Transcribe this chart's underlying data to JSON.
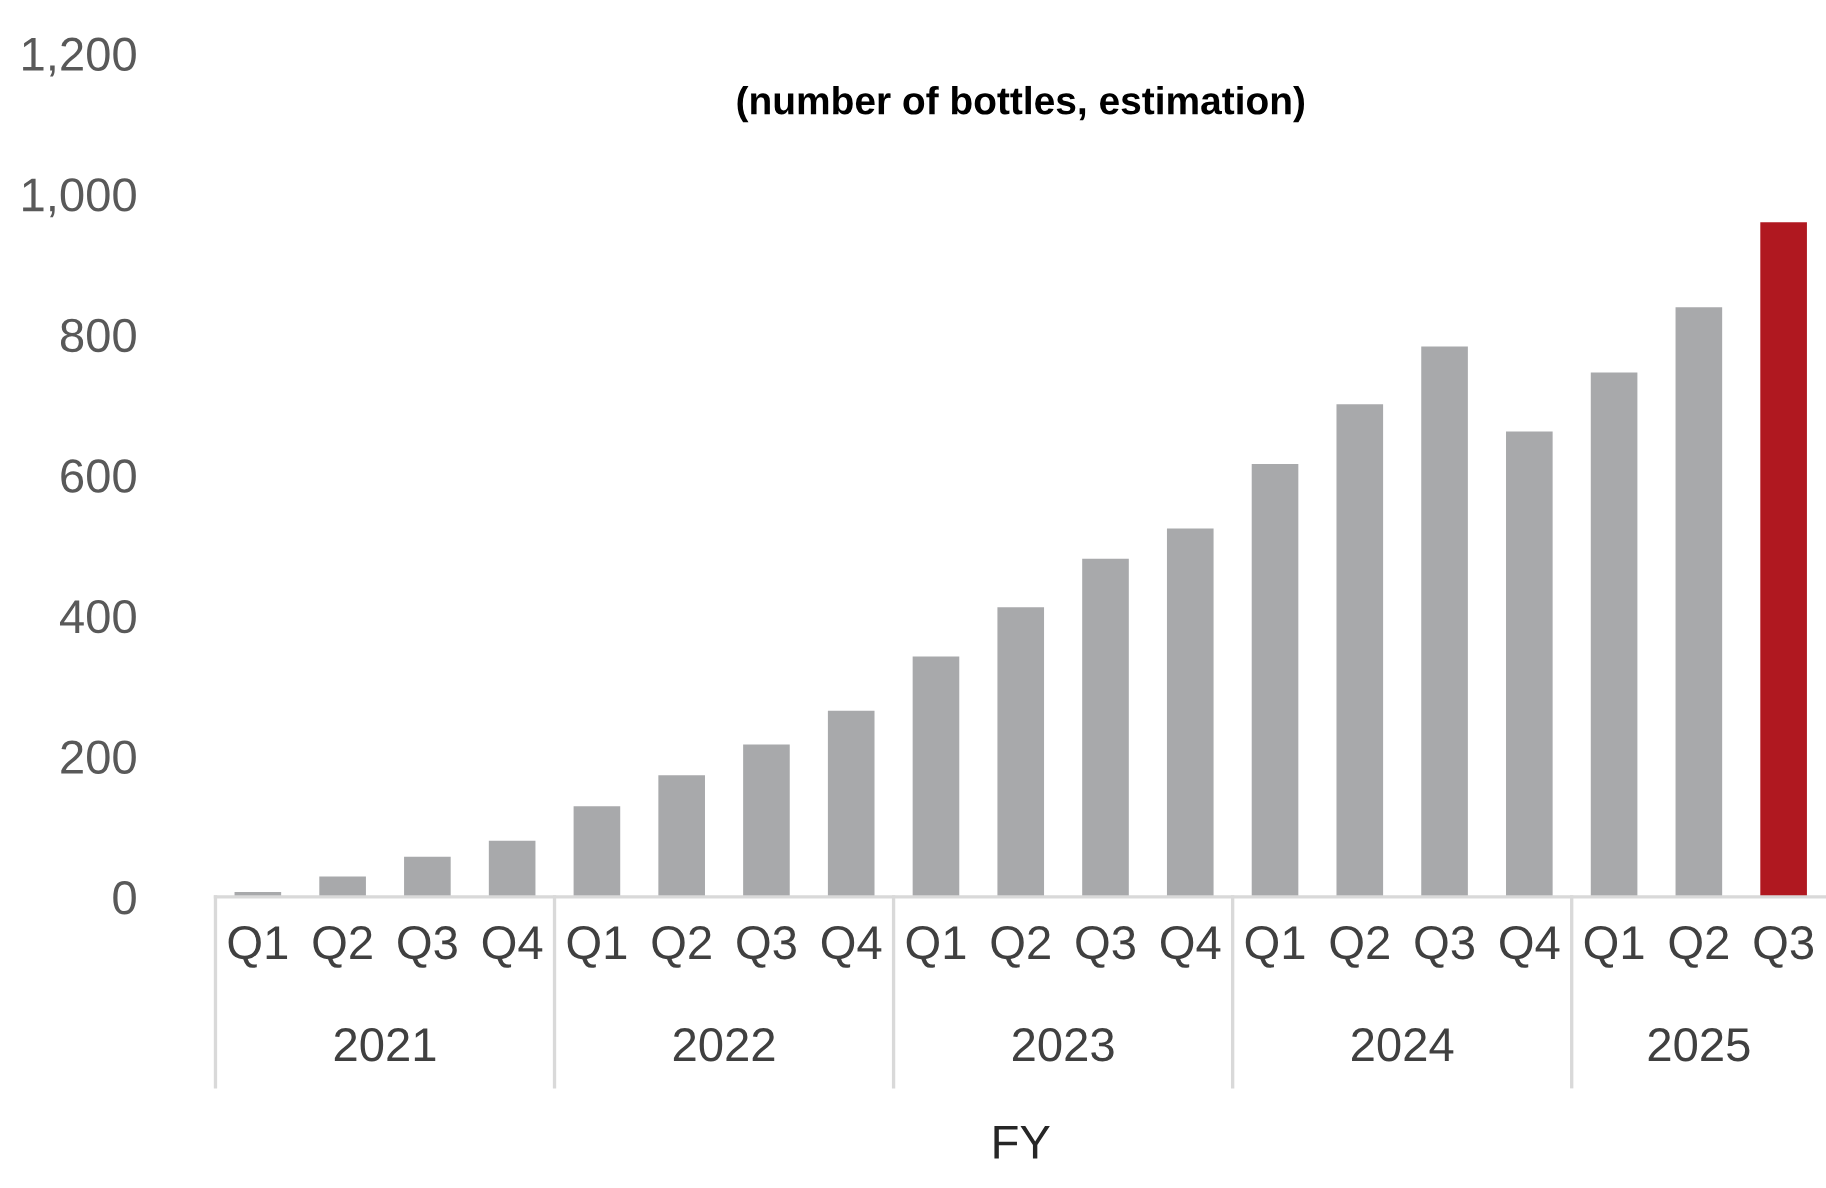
{
  "chart_data": {
    "type": "bar",
    "title": "(number of bottles, estimation)",
    "xlabel": "FY",
    "categories": [
      "Q1",
      "Q2",
      "Q3",
      "Q4",
      "Q1",
      "Q2",
      "Q3",
      "Q4",
      "Q1",
      "Q2",
      "Q3",
      "Q4",
      "Q1",
      "Q2",
      "Q3",
      "Q4",
      "Q1",
      "Q2",
      "Q3"
    ],
    "values": [
      7,
      29,
      57,
      80,
      129,
      173,
      217,
      265,
      342,
      412,
      481,
      524,
      616,
      701,
      783,
      662,
      746,
      839,
      960
    ],
    "colors": [
      "#a8a9ab",
      "#a8a9ab",
      "#a8a9ab",
      "#a8a9ab",
      "#a8a9ab",
      "#a8a9ab",
      "#a8a9ab",
      "#a8a9ab",
      "#a8a9ab",
      "#a8a9ab",
      "#a8a9ab",
      "#a8a9ab",
      "#a8a9ab",
      "#a8a9ab",
      "#a8a9ab",
      "#a8a9ab",
      "#a8a9ab",
      "#a8a9ab",
      "#b01820"
    ],
    "annotations": [
      "2021",
      "2022",
      "2023",
      "2024",
      "2025"
    ],
    "ylim": [
      0,
      1200
    ],
    "yticks": [
      0,
      {
        "value": 200,
        "label": "200"
      },
      {
        "value": 400,
        "label": "400"
      },
      {
        "value": 600,
        "label": "600"
      },
      {
        "value": 800,
        "label": "800"
      },
      {
        "value": 1000,
        "label": "1,000"
      },
      {
        "value": 1200,
        "label": "1,200"
      }
    ],
    "grid": false,
    "legend": false
  }
}
